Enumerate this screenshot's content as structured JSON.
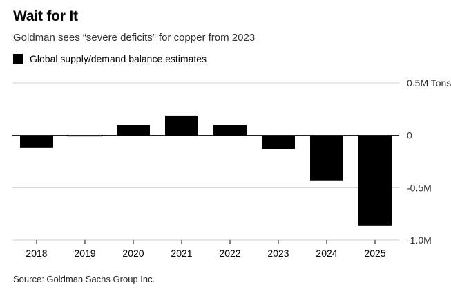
{
  "title": "Wait for It",
  "subtitle": "Goldman sees “severe deficits” for copper from 2023",
  "legend": {
    "label": "Global supply/demand balance estimates",
    "color": "#000000"
  },
  "source": "Source: Goldman Sachs Group Inc.",
  "chart_data": {
    "type": "bar",
    "categories": [
      "2018",
      "2019",
      "2020",
      "2021",
      "2022",
      "2023",
      "2024",
      "2025"
    ],
    "series": [
      {
        "name": "Global supply/demand balance estimates",
        "values": [
          -0.12,
          -0.01,
          0.1,
          0.19,
          0.1,
          -0.13,
          -0.43,
          -0.86
        ]
      }
    ],
    "ylim": [
      -1.0,
      0.5
    ],
    "yticks": [
      {
        "value": 0.5,
        "label": "0.5M Tons"
      },
      {
        "value": 0,
        "label": "0"
      },
      {
        "value": -0.5,
        "label": "-0.5M"
      },
      {
        "value": -1.0,
        "label": "-1.0M"
      }
    ],
    "grid": true,
    "bar_color": "#000000"
  }
}
